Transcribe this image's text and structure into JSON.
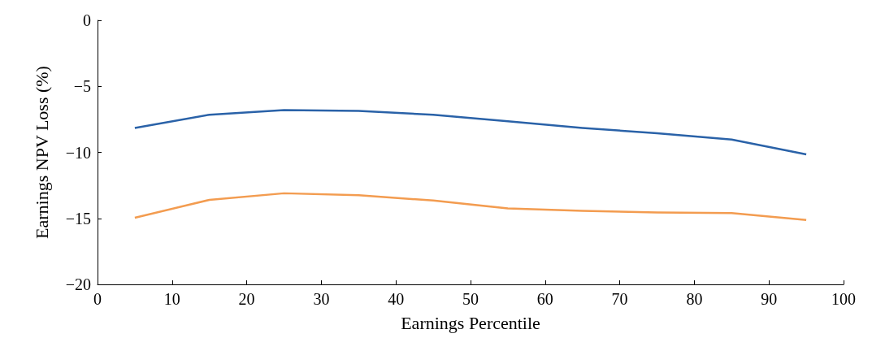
{
  "chart_data": {
    "type": "line",
    "xlabel": "Earnings Percentile",
    "ylabel": "Earnings NPV Loss (%)",
    "x": [
      5,
      15,
      25,
      35,
      45,
      55,
      65,
      75,
      85,
      95
    ],
    "series": [
      {
        "color": "#2a62a8",
        "values": [
          -8.15,
          -7.15,
          -6.8,
          -6.86,
          -7.15,
          -7.65,
          -8.15,
          -8.55,
          -9.03,
          -10.15
        ]
      },
      {
        "color": "#f39c50",
        "values": [
          -14.95,
          -13.6,
          -13.1,
          -13.25,
          -13.65,
          -14.25,
          -14.43,
          -14.55,
          -14.6,
          -15.13
        ]
      }
    ],
    "xlim": [
      0,
      100
    ],
    "xticks": [
      0,
      10,
      20,
      30,
      40,
      50,
      60,
      70,
      80,
      90,
      100
    ],
    "ylim": [
      -20,
      0
    ],
    "yticks": [
      {
        "value": -20,
        "label": "−20"
      },
      {
        "value": -15,
        "label": "−15"
      },
      {
        "value": -10,
        "label": "−10"
      },
      {
        "value": -5,
        "label": "−5"
      },
      0
    ],
    "grid": false,
    "marker": "none",
    "line_style": "solid"
  }
}
